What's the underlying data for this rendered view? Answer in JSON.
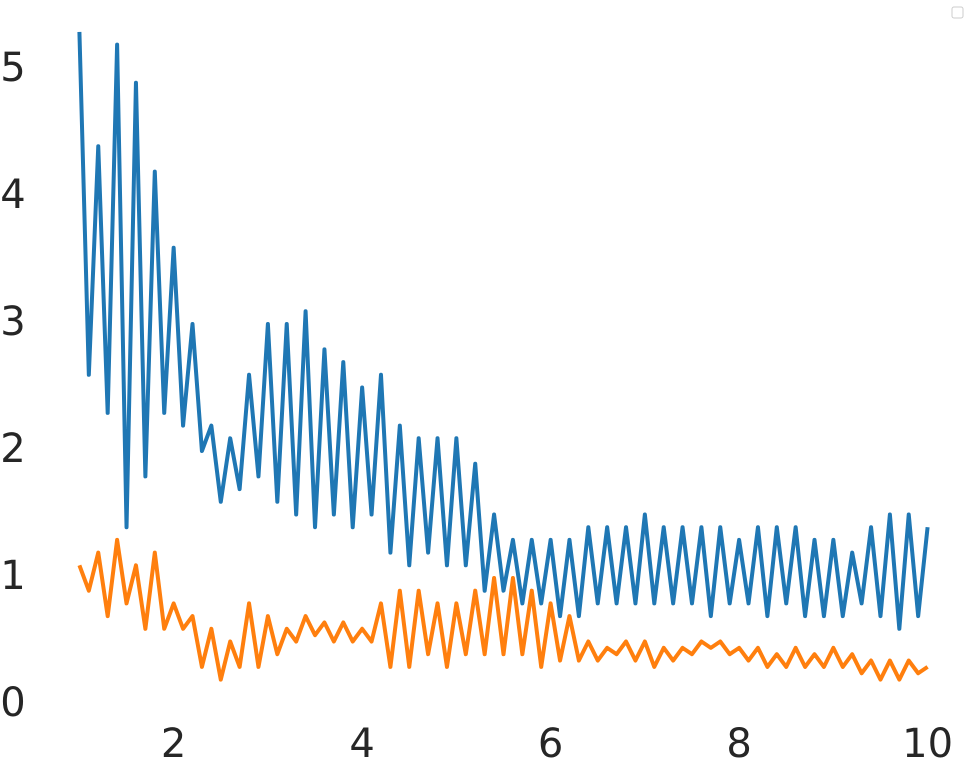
{
  "chart_data": {
    "type": "line",
    "x": [
      1.0,
      1.1,
      1.2,
      1.3,
      1.4,
      1.5,
      1.6,
      1.7,
      1.8,
      1.9,
      2.0,
      2.1,
      2.2,
      2.3,
      2.4,
      2.5,
      2.6,
      2.7,
      2.8,
      2.9,
      3.0,
      3.1,
      3.2,
      3.3,
      3.4,
      3.5,
      3.6,
      3.7,
      3.8,
      3.9,
      4.0,
      4.1,
      4.2,
      4.3,
      4.4,
      4.5,
      4.6,
      4.7,
      4.8,
      4.9,
      5.0,
      5.1,
      5.2,
      5.3,
      5.4,
      5.5,
      5.6,
      5.7,
      5.8,
      5.9,
      6.0,
      6.1,
      6.2,
      6.3,
      6.4,
      6.5,
      6.6,
      6.7,
      6.8,
      6.9,
      7.0,
      7.1,
      7.2,
      7.3,
      7.4,
      7.5,
      7.6,
      7.7,
      7.8,
      7.9,
      8.0,
      8.1,
      8.2,
      8.3,
      8.4,
      8.5,
      8.6,
      8.7,
      8.8,
      8.9,
      9.0,
      9.1,
      9.2,
      9.3,
      9.4,
      9.5,
      9.6,
      9.7,
      9.8,
      9.9,
      10.0
    ],
    "series": [
      {
        "color": "#1f77b4",
        "values": [
          5.3,
          2.6,
          4.4,
          2.3,
          5.2,
          1.4,
          4.9,
          1.8,
          4.2,
          2.3,
          3.6,
          2.2,
          3.0,
          2.0,
          2.2,
          1.6,
          2.1,
          1.7,
          2.6,
          1.8,
          3.0,
          1.6,
          3.0,
          1.5,
          3.1,
          1.4,
          2.8,
          1.5,
          2.7,
          1.4,
          2.5,
          1.5,
          2.6,
          1.2,
          2.2,
          1.1,
          2.1,
          1.2,
          2.1,
          1.1,
          2.1,
          1.1,
          1.9,
          0.9,
          1.5,
          0.9,
          1.3,
          0.8,
          1.3,
          0.8,
          1.3,
          0.7,
          1.3,
          0.7,
          1.4,
          0.8,
          1.4,
          0.8,
          1.4,
          0.8,
          1.5,
          0.8,
          1.4,
          0.8,
          1.4,
          0.8,
          1.4,
          0.7,
          1.4,
          0.8,
          1.3,
          0.8,
          1.4,
          0.7,
          1.4,
          0.8,
          1.4,
          0.7,
          1.3,
          0.7,
          1.3,
          0.7,
          1.2,
          0.8,
          1.4,
          0.7,
          1.5,
          0.6,
          1.5,
          0.7,
          1.4
        ]
      },
      {
        "color": "#ff7f0e",
        "values": [
          1.1,
          0.9,
          1.2,
          0.7,
          1.3,
          0.8,
          1.1,
          0.6,
          1.2,
          0.6,
          0.8,
          0.6,
          0.7,
          0.3,
          0.6,
          0.2,
          0.5,
          0.3,
          0.8,
          0.3,
          0.7,
          0.4,
          0.6,
          0.5,
          0.7,
          0.55,
          0.65,
          0.5,
          0.65,
          0.5,
          0.6,
          0.5,
          0.8,
          0.3,
          0.9,
          0.3,
          0.9,
          0.4,
          0.8,
          0.3,
          0.8,
          0.4,
          0.9,
          0.4,
          1.0,
          0.4,
          1.0,
          0.4,
          0.9,
          0.3,
          0.8,
          0.35,
          0.7,
          0.35,
          0.5,
          0.35,
          0.45,
          0.4,
          0.5,
          0.35,
          0.5,
          0.3,
          0.45,
          0.35,
          0.45,
          0.4,
          0.5,
          0.45,
          0.5,
          0.4,
          0.45,
          0.35,
          0.45,
          0.3,
          0.4,
          0.3,
          0.45,
          0.3,
          0.4,
          0.3,
          0.45,
          0.3,
          0.4,
          0.25,
          0.35,
          0.2,
          0.35,
          0.2,
          0.35,
          0.25,
          0.3
        ]
      }
    ],
    "xlim": [
      0.55,
      10.45
    ],
    "ylim": [
      -0.5,
      5.5
    ],
    "xticks": [
      2,
      4,
      6,
      8,
      10
    ],
    "yticks": [
      0,
      1,
      2,
      3,
      4,
      5
    ],
    "grid": false
  }
}
